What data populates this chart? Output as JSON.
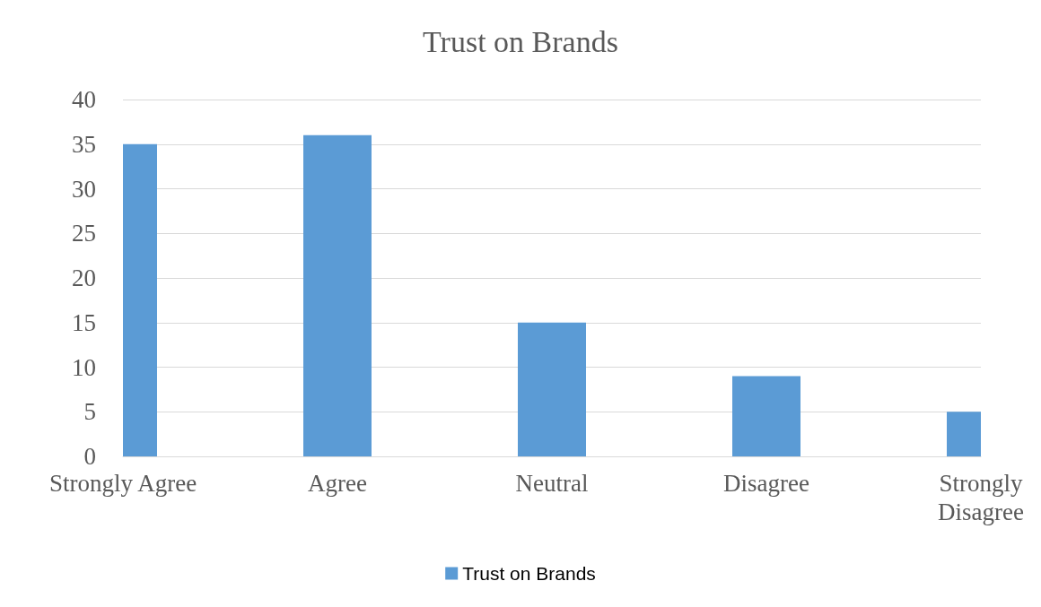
{
  "chart_data": {
    "type": "bar",
    "title": "Trust on Brands",
    "categories": [
      "Strongly Agree",
      "Agree",
      "Neutral",
      "Disagree",
      "Strongly Disagree"
    ],
    "series": [
      {
        "name": "Trust on Brands",
        "color": "#5b9bd5",
        "values": [
          35,
          36,
          15,
          9,
          5
        ]
      }
    ],
    "ylim": [
      0,
      40
    ],
    "yticks": [
      0,
      5,
      10,
      15,
      20,
      25,
      30,
      35,
      40
    ],
    "grid": "y",
    "legend": "bottom"
  }
}
